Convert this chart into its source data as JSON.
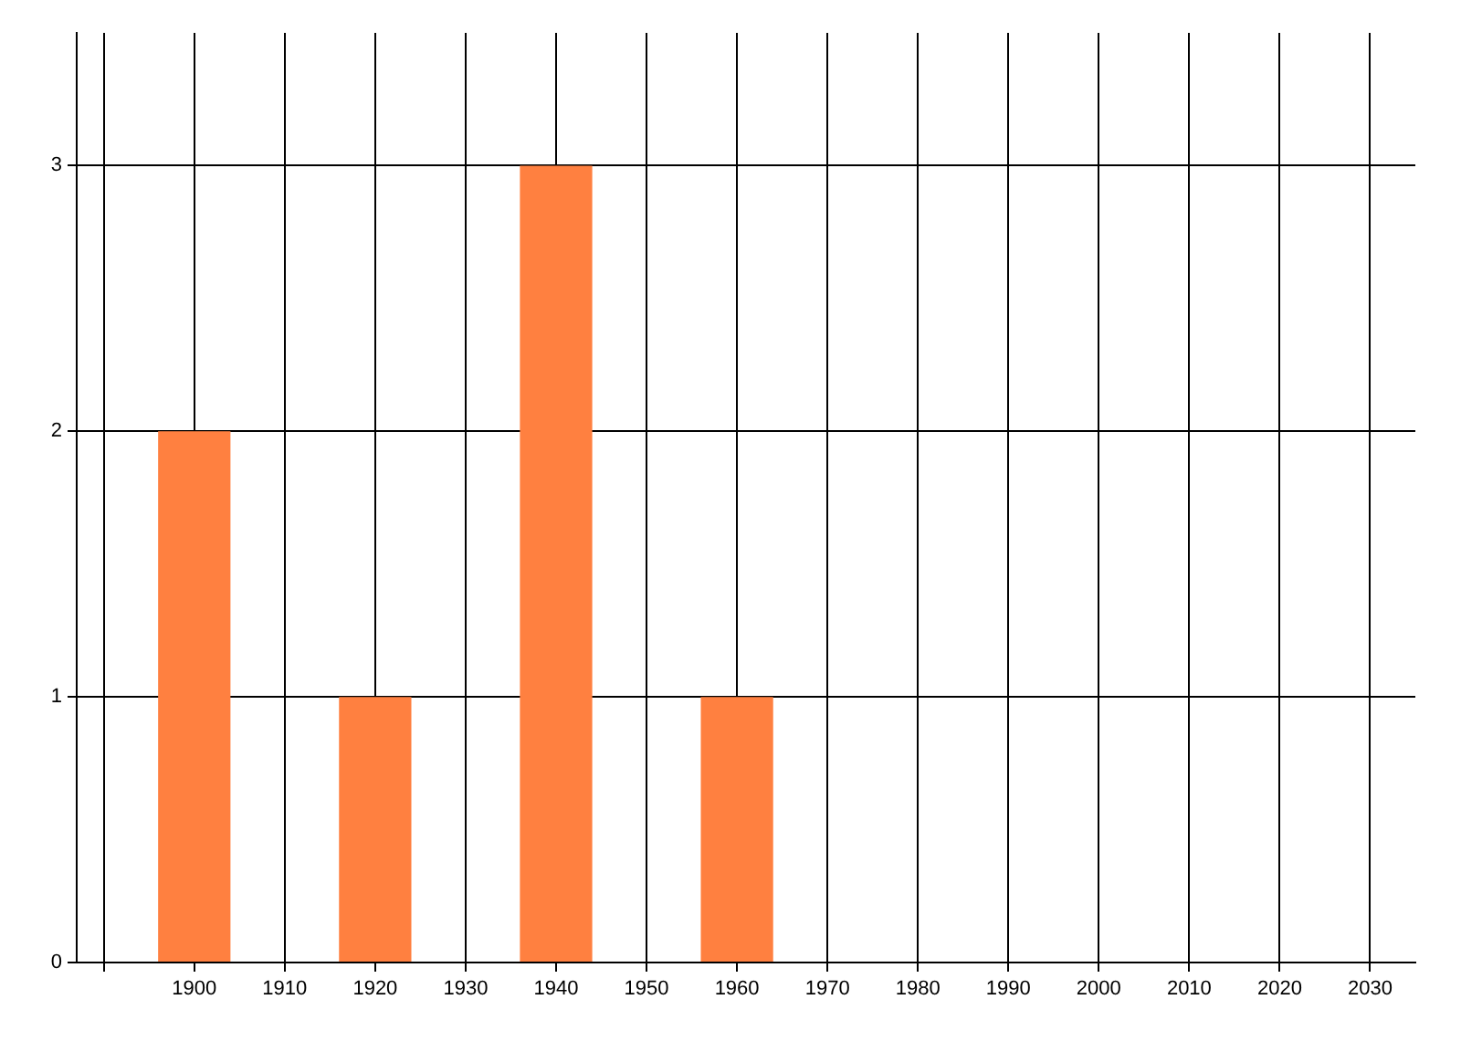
{
  "chart_data": {
    "type": "bar",
    "x": [
      1900,
      1920,
      1940,
      1960
    ],
    "values": [
      2,
      1,
      3,
      1
    ],
    "color": "#ff8040",
    "xlim": [
      1887,
      2035
    ],
    "xticks": [
      {
        "value": 1890,
        "label": null
      },
      1900,
      1910,
      1920,
      1930,
      1940,
      1950,
      1960,
      1970,
      1980,
      1990,
      2000,
      2010,
      2020,
      2030
    ],
    "ylim": [
      0,
      3.5
    ],
    "yticks": [
      0,
      1,
      2,
      3
    ],
    "grid": true,
    "legend": false
  }
}
